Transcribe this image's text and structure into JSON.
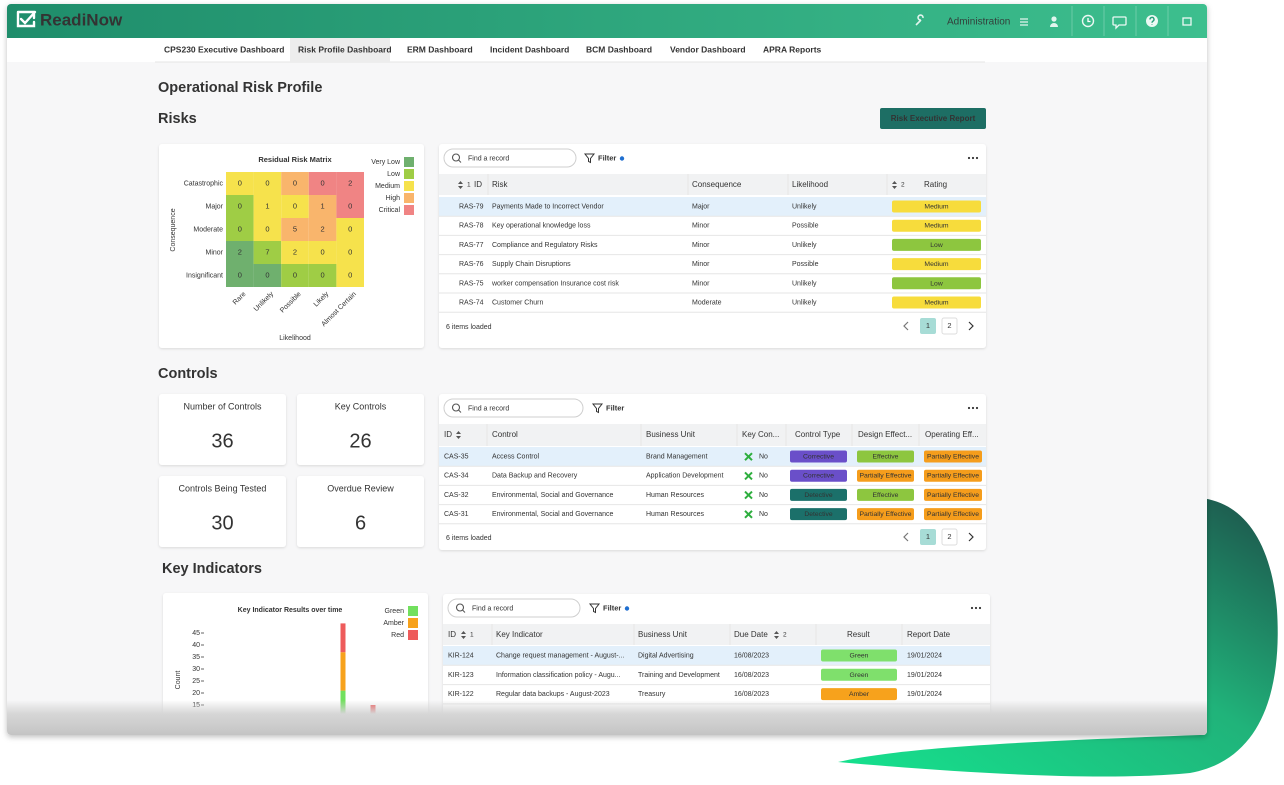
{
  "app": {
    "brand": "ReadiNow",
    "admin": "Administration"
  },
  "tabs": [
    "CPS230 Executive Dashboard",
    "Risk Profile Dashboard",
    "ERM Dashboard",
    "Incident Dashboard",
    "BCM Dashboard",
    "Vendor Dashboard",
    "APRA Reports"
  ],
  "page_title": "Operational Risk Profile",
  "risks": {
    "heading": "Risks",
    "button": "Risk Executive Report",
    "matrix": {
      "title": "Residual Risk Matrix",
      "y_label": "Consequence",
      "x_label": "Likelihood",
      "rows": [
        "Catastrophic",
        "Major",
        "Moderate",
        "Minor",
        "Insignificant"
      ],
      "columns": [
        "Rare",
        "Unlikely",
        "Possible",
        "Likely",
        "Almost Certain"
      ],
      "values": [
        [
          0,
          0,
          0,
          0,
          2
        ],
        [
          0,
          1,
          0,
          1,
          0
        ],
        [
          0,
          0,
          5,
          2,
          0
        ],
        [
          2,
          7,
          2,
          0,
          0
        ],
        [
          0,
          0,
          0,
          0,
          0
        ]
      ],
      "cell_colors": [
        [
          "#f6e24c",
          "#f6e24c",
          "#f9b56c",
          "#f08484",
          "#f08484"
        ],
        [
          "#9fcd45",
          "#f6e24c",
          "#f6e24c",
          "#f9b56c",
          "#f08484"
        ],
        [
          "#9fcd45",
          "#f6e24c",
          "#f9b56c",
          "#f9b56c",
          "#f6e24c"
        ],
        [
          "#6fb06e",
          "#9fcd45",
          "#f6e24c",
          "#f6e24c",
          "#f6e24c"
        ],
        [
          "#6fb06e",
          "#6fb06e",
          "#9fcd45",
          "#9fcd45",
          "#f6e24c"
        ]
      ],
      "legend": [
        {
          "name": "Very Low",
          "color": "#6fb06e"
        },
        {
          "name": "Low",
          "color": "#9fcd45"
        },
        {
          "name": "Medium",
          "color": "#f6e24c"
        },
        {
          "name": "High",
          "color": "#f9b56c"
        },
        {
          "name": "Critical",
          "color": "#f08484"
        }
      ]
    },
    "table": {
      "search": "Find a record",
      "filter": "Filter",
      "columns": [
        "ID",
        "Risk",
        "Consequence",
        "Likelihood",
        "Rating"
      ],
      "sort": {
        "id": "1",
        "rating": "2"
      },
      "rows": [
        {
          "id": "RAS-79",
          "risk": "Payments Made to Incorrect Vendor",
          "consequence": "Major",
          "likelihood": "Unlikely",
          "rating": "Medium",
          "rating_color": "#f7dc3c"
        },
        {
          "id": "RAS-78",
          "risk": "Key operational knowledge loss",
          "consequence": "Minor",
          "likelihood": "Possible",
          "rating": "Medium",
          "rating_color": "#f7dc3c"
        },
        {
          "id": "RAS-77",
          "risk": "Compliance and Regulatory Risks",
          "consequence": "Minor",
          "likelihood": "Unlikely",
          "rating": "Low",
          "rating_color": "#8dc63f"
        },
        {
          "id": "RAS-76",
          "risk": "Supply Chain Disruptions",
          "consequence": "Minor",
          "likelihood": "Possible",
          "rating": "Medium",
          "rating_color": "#f7dc3c"
        },
        {
          "id": "RAS-75",
          "risk": "worker compensation Insurance cost risk",
          "consequence": "Minor",
          "likelihood": "Unlikely",
          "rating": "Low",
          "rating_color": "#8dc63f"
        },
        {
          "id": "RAS-74",
          "risk": "Customer Churn",
          "consequence": "Moderate",
          "likelihood": "Unlikely",
          "rating": "Medium",
          "rating_color": "#f7dc3c"
        }
      ],
      "footer": "6 items loaded",
      "pages": [
        "1",
        "2"
      ]
    }
  },
  "controls": {
    "heading": "Controls",
    "kpis": [
      {
        "label": "Number of Controls",
        "value": 36,
        "color": "#1f7fc8"
      },
      {
        "label": "Key Controls",
        "value": 26,
        "color": "#17918a"
      },
      {
        "label": "Controls Being Tested",
        "value": 30,
        "color": "#2cb34a"
      },
      {
        "label": "Overdue Review",
        "value": 6,
        "color": "#d7801e"
      }
    ],
    "table": {
      "search": "Find a record",
      "filter": "Filter",
      "columns": [
        "ID",
        "Control",
        "Business Unit",
        "Key Con...",
        "Control Type",
        "Design Effect...",
        "Operating Eff..."
      ],
      "rows": [
        {
          "id": "CAS-35",
          "control": "Access Control",
          "business_unit": "Brand Management",
          "key_control": "No",
          "control_type": "Corrective",
          "type_color": "#6a4fc9",
          "design": "Effective",
          "design_color": "#8dc63f",
          "operating": "Partially Effective",
          "operating_color": "#f59d1c"
        },
        {
          "id": "CAS-34",
          "control": "Data Backup and Recovery",
          "business_unit": "Application Development",
          "key_control": "No",
          "control_type": "Corrective",
          "type_color": "#6a4fc9",
          "design": "Partially Effective",
          "design_color": "#f59d1c",
          "operating": "Partially Effective",
          "operating_color": "#f59d1c"
        },
        {
          "id": "CAS-32",
          "control": "Environmental, Social and Governance",
          "business_unit": "Human Resources",
          "key_control": "No",
          "control_type": "Detective",
          "type_color": "#1b706a",
          "design": "Effective",
          "design_color": "#8dc63f",
          "operating": "Partially Effective",
          "operating_color": "#f59d1c"
        },
        {
          "id": "CAS-31",
          "control": "Environmental, Social and Governance",
          "business_unit": "Human Resources",
          "key_control": "No",
          "control_type": "Detective",
          "type_color": "#1b706a",
          "design": "Partially Effective",
          "design_color": "#f59d1c",
          "operating": "Partially Effective",
          "operating_color": "#f59d1c"
        }
      ],
      "footer": "6 items loaded",
      "pages": [
        "1",
        "2"
      ]
    }
  },
  "key_indicators": {
    "heading": "Key Indicators",
    "chart": {
      "type": "bar",
      "title": "Key Indicator Results over time",
      "y_label": "Count",
      "ylim": [
        0,
        50
      ],
      "yticks": [
        15,
        20,
        25,
        30,
        35,
        40,
        45
      ],
      "series": [
        {
          "name": "Green",
          "color": "#72e05e",
          "values": [
            21,
            0
          ]
        },
        {
          "name": "Amber",
          "color": "#f7a21c",
          "values": [
            16,
            0
          ]
        },
        {
          "name": "Red",
          "color": "#ee5b5b",
          "values": [
            12,
            15
          ]
        }
      ]
    },
    "table": {
      "search": "Find a record",
      "filter": "Filter",
      "columns": [
        "ID",
        "Key Indicator",
        "Business Unit",
        "Due Date",
        "Result",
        "Report Date"
      ],
      "sort": {
        "id": "1",
        "due_date": "2"
      },
      "rows": [
        {
          "id": "KIR-124",
          "indicator": "Change request management - August-...",
          "business_unit": "Digital Advertising",
          "due_date": "16/08/2023",
          "result": "Green",
          "result_color": "#7fe06c",
          "report_date": "19/01/2024"
        },
        {
          "id": "KIR-123",
          "indicator": "Information classification policy - Augu...",
          "business_unit": "Training and Development",
          "due_date": "16/08/2023",
          "result": "Green",
          "result_color": "#7fe06c",
          "report_date": "19/01/2024"
        },
        {
          "id": "KIR-122",
          "indicator": "Regular data backups - August-2023",
          "business_unit": "Treasury",
          "due_date": "16/08/2023",
          "result": "Amber",
          "result_color": "#f7a21c",
          "report_date": "19/01/2024"
        }
      ]
    }
  }
}
